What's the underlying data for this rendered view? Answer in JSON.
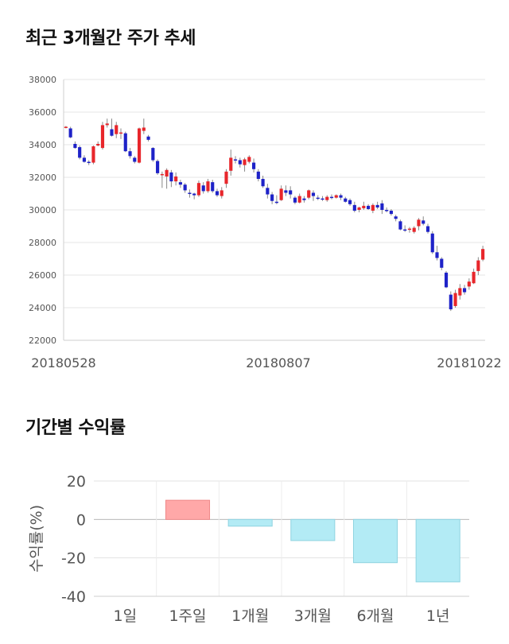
{
  "section1": {
    "title": "최근 3개월간 주가 추세"
  },
  "section2": {
    "title": "기간별 수익률"
  },
  "colors": {
    "up": "#e8262b",
    "down": "#1e22c8",
    "bar": "#b3ebf5",
    "bar_pos": "#ffa8a8"
  },
  "chart_data": [
    {
      "type": "candlestick",
      "ylim": [
        22000,
        38000
      ],
      "yticks": [
        "38000",
        "36000",
        "34000",
        "32000",
        "30000",
        "28000",
        "26000",
        "24000",
        "22000"
      ],
      "xtick_labels": [
        "20180528",
        "20180807",
        "20181022"
      ],
      "candles": [
        [
          35100,
          35150,
          35000,
          35100
        ],
        [
          35000,
          35100,
          34400,
          34450
        ],
        [
          34050,
          34200,
          33750,
          33800
        ],
        [
          33850,
          33950,
          33100,
          33200
        ],
        [
          33200,
          33350,
          32900,
          32950
        ],
        [
          32950,
          33050,
          32750,
          32900
        ],
        [
          32900,
          33950,
          32800,
          33900
        ],
        [
          33950,
          34200,
          33900,
          34050
        ],
        [
          33800,
          35400,
          33700,
          35200
        ],
        [
          35200,
          35600,
          35050,
          35300
        ],
        [
          34950,
          35600,
          34500,
          34550
        ],
        [
          34650,
          35400,
          34400,
          35200
        ],
        [
          34700,
          35000,
          34350,
          34750
        ],
        [
          34700,
          34800,
          33550,
          33600
        ],
        [
          33600,
          33800,
          33150,
          33300
        ],
        [
          33200,
          33300,
          32850,
          32950
        ],
        [
          32900,
          35050,
          32850,
          35000
        ],
        [
          34850,
          35600,
          34650,
          35050
        ],
        [
          34500,
          34600,
          34200,
          34300
        ],
        [
          33800,
          33850,
          32950,
          33050
        ],
        [
          33000,
          33100,
          32150,
          32250
        ],
        [
          32200,
          32350,
          31350,
          32200
        ],
        [
          32050,
          32550,
          31300,
          32450
        ],
        [
          32300,
          32450,
          31400,
          31750
        ],
        [
          31750,
          32300,
          31500,
          32050
        ],
        [
          31700,
          31850,
          31350,
          31550
        ],
        [
          31550,
          31650,
          31050,
          31200
        ],
        [
          31050,
          31250,
          30750,
          31000
        ],
        [
          31000,
          31050,
          30650,
          30900
        ],
        [
          30900,
          31800,
          30800,
          31650
        ],
        [
          31500,
          31700,
          31000,
          31150
        ],
        [
          31150,
          31900,
          31050,
          31750
        ],
        [
          31700,
          31850,
          31050,
          31150
        ],
        [
          31150,
          31300,
          30800,
          30900
        ],
        [
          30850,
          31400,
          30700,
          31200
        ],
        [
          31600,
          32500,
          31350,
          32350
        ],
        [
          32400,
          33700,
          32100,
          33200
        ],
        [
          33100,
          33300,
          32850,
          33050
        ],
        [
          33050,
          33200,
          32600,
          32800
        ],
        [
          32750,
          33200,
          32350,
          33100
        ],
        [
          32950,
          33350,
          32850,
          33250
        ],
        [
          32900,
          33150,
          32300,
          32500
        ],
        [
          32350,
          32500,
          31750,
          31900
        ],
        [
          31900,
          32100,
          31350,
          31450
        ],
        [
          31350,
          31600,
          30700,
          30950
        ],
        [
          30950,
          31100,
          30350,
          30550
        ],
        [
          30500,
          30900,
          30350,
          30450
        ],
        [
          30600,
          31500,
          30550,
          31300
        ],
        [
          31200,
          31500,
          30850,
          31050
        ],
        [
          31200,
          31450,
          30700,
          30950
        ],
        [
          30750,
          30850,
          30350,
          30450
        ],
        [
          30450,
          31000,
          30400,
          30850
        ],
        [
          30700,
          30850,
          30450,
          30600
        ],
        [
          30750,
          31250,
          30650,
          31200
        ],
        [
          31050,
          31200,
          30550,
          30850
        ],
        [
          30750,
          30900,
          30600,
          30700
        ],
        [
          30700,
          30850,
          30550,
          30650
        ],
        [
          30600,
          30900,
          30500,
          30800
        ],
        [
          30800,
          30950,
          30650,
          30750
        ],
        [
          30750,
          30950,
          30700,
          30900
        ],
        [
          30900,
          31000,
          30600,
          30750
        ],
        [
          30700,
          30800,
          30450,
          30500
        ],
        [
          30600,
          30700,
          30250,
          30350
        ],
        [
          30300,
          30500,
          29850,
          29950
        ],
        [
          30000,
          30200,
          29850,
          30150
        ],
        [
          30100,
          30500,
          30000,
          30250
        ],
        [
          30250,
          30350,
          30000,
          30050
        ],
        [
          29950,
          30400,
          29800,
          30300
        ],
        [
          30300,
          30500,
          30050,
          30150
        ],
        [
          30400,
          30600,
          29750,
          30000
        ],
        [
          30000,
          30150,
          29850,
          29950
        ],
        [
          29950,
          30050,
          29650,
          29750
        ],
        [
          29600,
          29700,
          29300,
          29450
        ],
        [
          29300,
          29400,
          28750,
          28800
        ],
        [
          28800,
          29050,
          28650,
          28750
        ],
        [
          28800,
          28950,
          28600,
          28850
        ],
        [
          28650,
          29000,
          28550,
          28900
        ],
        [
          29000,
          29500,
          28750,
          29400
        ],
        [
          29350,
          29600,
          29050,
          29150
        ],
        [
          29000,
          29150,
          28550,
          28650
        ],
        [
          28550,
          28700,
          27300,
          27400
        ],
        [
          27400,
          27800,
          26900,
          27050
        ],
        [
          27000,
          27100,
          26300,
          26450
        ],
        [
          26150,
          26250,
          25200,
          25250
        ],
        [
          24800,
          25000,
          23800,
          23900
        ],
        [
          24100,
          25100,
          24000,
          24900
        ],
        [
          24750,
          25450,
          24500,
          25200
        ],
        [
          25200,
          25400,
          24800,
          24950
        ],
        [
          25300,
          25800,
          25100,
          25600
        ],
        [
          25500,
          26400,
          25450,
          26200
        ],
        [
          26250,
          27100,
          26000,
          26900
        ],
        [
          26950,
          27800,
          26850,
          27600
        ]
      ]
    },
    {
      "type": "bar",
      "ylabel": "수익률(%)",
      "ylim": [
        -40,
        20
      ],
      "yticks": [
        "20",
        "0",
        "-20",
        "-40"
      ],
      "categories": [
        "1일",
        "1주일",
        "1개월",
        "3개월",
        "6개월",
        "1년"
      ],
      "values": [
        0,
        10,
        -3.5,
        -11,
        -22.5,
        -32.5
      ]
    }
  ]
}
